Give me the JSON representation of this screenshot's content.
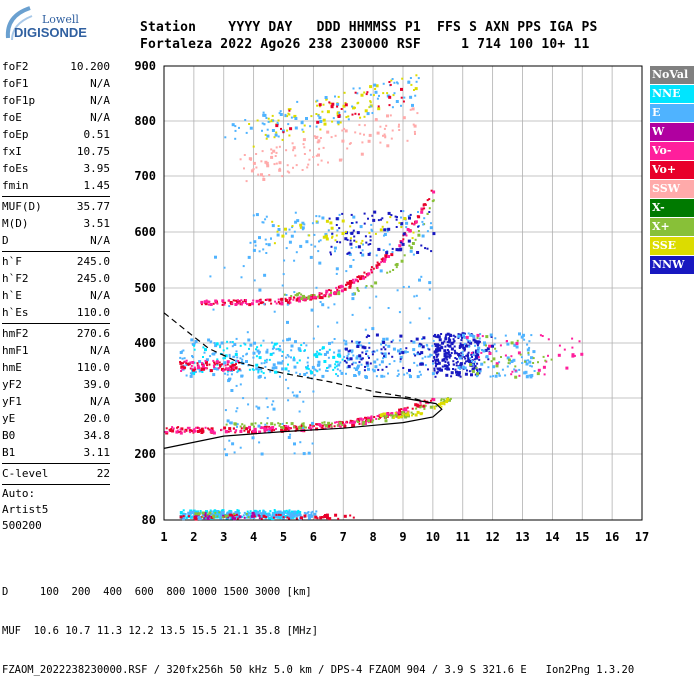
{
  "logo": {
    "line1": "Lowell",
    "line2": "DIGISONDE"
  },
  "header": {
    "line1": "Station    YYYY DAY   DDD HHMMSS P1  FFS S AXN PPS IGA PS",
    "line2": "Fortaleza 2022 Ago26 238 230000 RSF     1 714 100 10+ 11"
  },
  "params": {
    "group1": [
      {
        "label": "foF2",
        "value": "10.200"
      },
      {
        "label": "foF1",
        "value": "N/A"
      },
      {
        "label": "foF1p",
        "value": "N/A"
      },
      {
        "label": "foE",
        "value": "N/A"
      },
      {
        "label": "foEp",
        "value": "0.51"
      },
      {
        "label": "fxI",
        "value": "10.75"
      },
      {
        "label": "foEs",
        "value": "3.95"
      },
      {
        "label": "fmin",
        "value": "1.45"
      }
    ],
    "group2": [
      {
        "label": "MUF(D)",
        "value": "35.77"
      },
      {
        "label": "M(D)",
        "value": "3.51"
      },
      {
        "label": "D",
        "value": "N/A"
      }
    ],
    "group3": [
      {
        "label": "h`F",
        "value": "245.0"
      },
      {
        "label": "h`F2",
        "value": "245.0"
      },
      {
        "label": "h`E",
        "value": "N/A"
      },
      {
        "label": "h`Es",
        "value": "110.0"
      }
    ],
    "group4": [
      {
        "label": "hmF2",
        "value": "270.6"
      },
      {
        "label": "hmF1",
        "value": "N/A"
      },
      {
        "label": "hmE",
        "value": "110.0"
      },
      {
        "label": "yF2",
        "value": "39.0"
      },
      {
        "label": "yF1",
        "value": "N/A"
      },
      {
        "label": "yE",
        "value": "20.0"
      },
      {
        "label": "B0",
        "value": "34.8"
      },
      {
        "label": "B1",
        "value": "3.11"
      }
    ],
    "group5": [
      {
        "label": "C-level",
        "value": "22"
      }
    ],
    "autoscaling": [
      "Auto:",
      "Artist5",
      "500200"
    ]
  },
  "legend": [
    {
      "name": "NoVal",
      "color": "#808080"
    },
    {
      "name": "NNE",
      "color": "#00e5ff"
    },
    {
      "name": "E",
      "color": "#4fb3ff"
    },
    {
      "name": "W",
      "color": "#b000a0"
    },
    {
      "name": "Vo-",
      "color": "#ff1f9c"
    },
    {
      "name": "Vo+",
      "color": "#e8002a"
    },
    {
      "name": "SSW",
      "color": "#ffaaaa"
    },
    {
      "name": "X-",
      "color": "#007a00"
    },
    {
      "name": "X+",
      "color": "#88c038"
    },
    {
      "name": "SSE",
      "color": "#dcdc00"
    },
    {
      "name": "NNW",
      "color": "#1818c0"
    }
  ],
  "footer": {
    "line1": "D     100  200  400  600  800 1000 1500 3000 [km]",
    "line2": "MUF  10.6 10.7 11.3 12.2 13.5 15.5 21.1 35.8 [MHz]",
    "line3": "FZAOM_2022238230000.RSF / 320fx256h 50 kHz 5.0 km / DPS-4 FZAOM 904 / 3.9 S 321.6 E   Ion2Png 1.3.20"
  },
  "chart_data": {
    "type": "scatter",
    "xlim": [
      1,
      17
    ],
    "ylim": [
      80,
      900
    ],
    "xticks": [
      "1",
      "2",
      "3",
      "4",
      "5",
      "6",
      "7",
      "8",
      "9",
      "10",
      "11",
      "12",
      "13",
      "14",
      "15",
      "16",
      "17"
    ],
    "yticks": [
      "80",
      "200",
      "300",
      "400",
      "500",
      "600",
      "700",
      "800",
      "900"
    ],
    "grid": true,
    "clusters": [
      {
        "series": "NNE",
        "f0": 1.5,
        "f1": 5.5,
        "h0": 85,
        "h1": 100,
        "n": 220,
        "shape": "flat"
      },
      {
        "series": "E",
        "f0": 1.6,
        "f1": 6.2,
        "h0": 85,
        "h1": 98,
        "n": 140,
        "shape": "flat"
      },
      {
        "series": "Vo+",
        "f0": 1.5,
        "f1": 7.5,
        "h0": 84,
        "h1": 92,
        "n": 50,
        "shape": "flat"
      },
      {
        "series": "W",
        "f0": 2.0,
        "f1": 4.3,
        "h0": 85,
        "h1": 95,
        "n": 25,
        "shape": "flat"
      },
      {
        "series": "X+",
        "f0": 1.9,
        "f1": 3.8,
        "h0": 85,
        "h1": 96,
        "n": 20,
        "shape": "flat"
      },
      {
        "series": "Vo+",
        "f0": 1.0,
        "f1": 10.0,
        "h0": 245,
        "h1": 300,
        "n": 170,
        "shape": "curve"
      },
      {
        "series": "Vo-",
        "f0": 1.0,
        "f1": 10.0,
        "h0": 245,
        "h1": 300,
        "n": 110,
        "shape": "curve"
      },
      {
        "series": "X+",
        "f0": 3.0,
        "f1": 10.6,
        "h0": 252,
        "h1": 305,
        "n": 90,
        "shape": "curve"
      },
      {
        "series": "SSE",
        "f0": 8.0,
        "f1": 10.5,
        "h0": 270,
        "h1": 300,
        "n": 30,
        "shape": "curve"
      },
      {
        "series": "Vo+",
        "f0": 2.2,
        "f1": 10.0,
        "h0": 475,
        "h1": 680,
        "n": 150,
        "shape": "curve"
      },
      {
        "series": "Vo-",
        "f0": 2.2,
        "f1": 10.0,
        "h0": 475,
        "h1": 680,
        "n": 90,
        "shape": "curve"
      },
      {
        "series": "X+",
        "f0": 5.0,
        "f1": 10.2,
        "h0": 488,
        "h1": 690,
        "n": 50,
        "shape": "curve"
      },
      {
        "series": "E",
        "f0": 1.5,
        "f1": 10.0,
        "h0": 340,
        "h1": 410,
        "n": 300,
        "shape": "flat"
      },
      {
        "series": "NNE",
        "f0": 1.8,
        "f1": 7.0,
        "h0": 345,
        "h1": 405,
        "n": 90,
        "shape": "flat"
      },
      {
        "series": "Vo+",
        "f0": 1.5,
        "f1": 3.5,
        "h0": 352,
        "h1": 368,
        "n": 60,
        "shape": "flat"
      },
      {
        "series": "Vo-",
        "f0": 1.5,
        "f1": 3.5,
        "h0": 350,
        "h1": 370,
        "n": 30,
        "shape": "flat"
      },
      {
        "series": "NNW",
        "f0": 7.0,
        "f1": 12.0,
        "h0": 350,
        "h1": 420,
        "n": 120,
        "shape": "flat"
      },
      {
        "series": "NNW",
        "f0": 10.0,
        "f1": 11.5,
        "h0": 340,
        "h1": 420,
        "n": 200,
        "shape": "flat"
      },
      {
        "series": "E",
        "f0": 10.8,
        "f1": 13.4,
        "h0": 340,
        "h1": 420,
        "n": 100,
        "shape": "flat"
      },
      {
        "series": "Vo-",
        "f0": 11.0,
        "f1": 15.0,
        "h0": 340,
        "h1": 420,
        "n": 40,
        "shape": "flat"
      },
      {
        "series": "X+",
        "f0": 11.0,
        "f1": 14.0,
        "h0": 340,
        "h1": 420,
        "n": 30,
        "shape": "flat"
      },
      {
        "series": "E",
        "f0": 3.8,
        "f1": 10.0,
        "h0": 560,
        "h1": 640,
        "n": 100,
        "shape": "flat"
      },
      {
        "series": "NNW",
        "f0": 6.5,
        "f1": 10.0,
        "h0": 560,
        "h1": 640,
        "n": 80,
        "shape": "flat"
      },
      {
        "series": "SSE",
        "f0": 4.5,
        "f1": 9.5,
        "h0": 580,
        "h1": 630,
        "n": 40,
        "shape": "flat"
      },
      {
        "series": "SSW",
        "f0": 3.5,
        "f1": 9.5,
        "h0": 680,
        "h1": 830,
        "n": 120,
        "shape": "diag"
      },
      {
        "series": "SSE",
        "f0": 3.8,
        "f1": 9.5,
        "h0": 750,
        "h1": 890,
        "n": 80,
        "shape": "diag"
      },
      {
        "series": "E",
        "f0": 3.0,
        "f1": 9.5,
        "h0": 750,
        "h1": 890,
        "n": 90,
        "shape": "diag"
      },
      {
        "series": "Vo+",
        "f0": 4.5,
        "f1": 9.0,
        "h0": 770,
        "h1": 880,
        "n": 30,
        "shape": "diag"
      },
      {
        "series": "E",
        "f0": 2.5,
        "f1": 10.0,
        "h0": 420,
        "h1": 560,
        "n": 60,
        "shape": "flat"
      },
      {
        "series": "E",
        "f0": 3.0,
        "f1": 6.0,
        "h0": 200,
        "h1": 340,
        "n": 60,
        "shape": "flat"
      }
    ],
    "profile_solid": [
      [
        1.0,
        210
      ],
      [
        3.0,
        232
      ],
      [
        5.0,
        240
      ],
      [
        7.0,
        246
      ],
      [
        9.0,
        256
      ],
      [
        10.0,
        266
      ],
      [
        10.3,
        280
      ],
      [
        10.1,
        290
      ],
      [
        9.0,
        300
      ],
      [
        8.0,
        303
      ]
    ],
    "profile_dashed": [
      [
        1.0,
        455
      ],
      [
        1.8,
        420
      ],
      [
        2.5,
        390
      ],
      [
        3.5,
        365
      ],
      [
        5.0,
        345
      ],
      [
        6.5,
        330
      ],
      [
        8.0,
        312
      ],
      [
        9.3,
        300
      ],
      [
        10.0,
        290
      ]
    ]
  }
}
